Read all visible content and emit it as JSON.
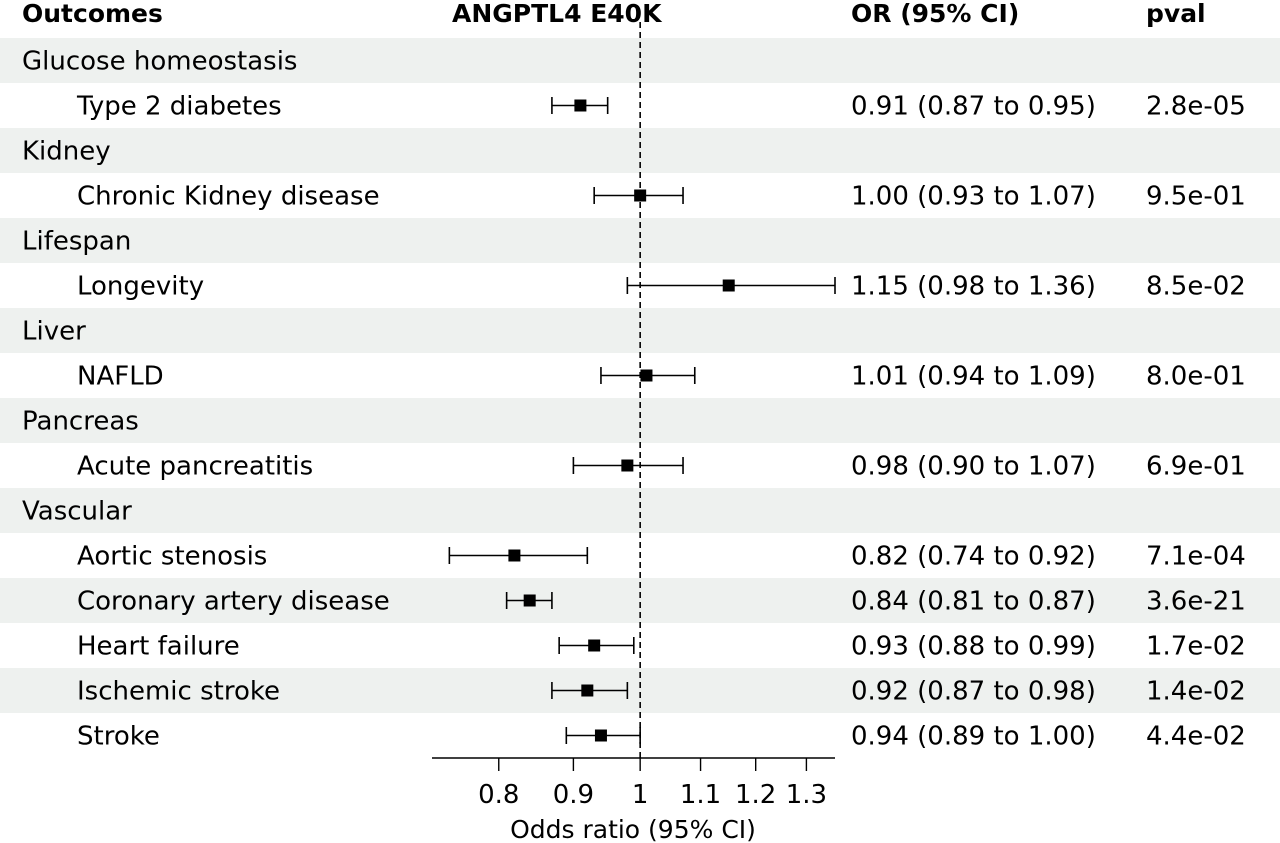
{
  "headers": {
    "outcomes": "Outcomes",
    "exposure": "ANGPTL4 E40K",
    "or_ci": "OR (95% CI)",
    "pval": "pval"
  },
  "chart_data": {
    "type": "forest",
    "null_line": 1,
    "x_scale": "log",
    "xlim": [
      0.72,
      1.36
    ],
    "xticks": [
      0.8,
      0.9,
      1,
      1.1,
      1.2,
      1.3
    ],
    "xtick_labels": [
      "0.8",
      "0.9",
      "1",
      "1.1",
      "1.2",
      "1.3"
    ],
    "xlabel": "Odds ratio (95% CI)",
    "groups": [
      {
        "name": "Glucose homeostasis",
        "outcomes": [
          {
            "name": "Type 2 diabetes",
            "or": 0.91,
            "lower": 0.87,
            "upper": 0.95,
            "ci_text": "0.91 (0.87 to 0.95)",
            "pval": "2.8e-05"
          }
        ]
      },
      {
        "name": "Kidney",
        "outcomes": [
          {
            "name": "Chronic Kidney disease",
            "or": 1.0,
            "lower": 0.93,
            "upper": 1.07,
            "ci_text": "1.00 (0.93 to 1.07)",
            "pval": "9.5e-01"
          }
        ]
      },
      {
        "name": "Lifespan",
        "outcomes": [
          {
            "name": "Longevity",
            "or": 1.15,
            "lower": 0.98,
            "upper": 1.36,
            "ci_text": "1.15 (0.98 to 1.36)",
            "pval": "8.5e-02"
          }
        ]
      },
      {
        "name": "Liver",
        "outcomes": [
          {
            "name": "NAFLD",
            "or": 1.01,
            "lower": 0.94,
            "upper": 1.09,
            "ci_text": "1.01 (0.94 to 1.09)",
            "pval": "8.0e-01"
          }
        ]
      },
      {
        "name": "Pancreas",
        "outcomes": [
          {
            "name": "Acute pancreatitis",
            "or": 0.98,
            "lower": 0.9,
            "upper": 1.07,
            "ci_text": "0.98 (0.90 to 1.07)",
            "pval": "6.9e-01"
          }
        ]
      },
      {
        "name": "Vascular",
        "outcomes": [
          {
            "name": "Aortic stenosis",
            "or": 0.82,
            "lower": 0.74,
            "upper": 0.92,
            "ci_text": "0.82 (0.74 to 0.92)",
            "pval": "7.1e-04"
          },
          {
            "name": "Coronary artery disease",
            "or": 0.84,
            "lower": 0.81,
            "upper": 0.87,
            "ci_text": "0.84 (0.81 to 0.87)",
            "pval": "3.6e-21"
          },
          {
            "name": "Heart failure",
            "or": 0.93,
            "lower": 0.88,
            "upper": 0.99,
            "ci_text": "0.93 (0.88 to 0.99)",
            "pval": "1.7e-02"
          },
          {
            "name": "Ischemic stroke",
            "or": 0.92,
            "lower": 0.87,
            "upper": 0.98,
            "ci_text": "0.92 (0.87 to 0.98)",
            "pval": "1.4e-02"
          },
          {
            "name": "Stroke",
            "or": 0.94,
            "lower": 0.89,
            "upper": 1.0,
            "ci_text": "0.94 (0.89 to 1.00)",
            "pval": "4.4e-02"
          }
        ]
      }
    ]
  },
  "colors": {
    "stripe": "#eef1ef",
    "marker": "#000000",
    "line": "#000000"
  }
}
